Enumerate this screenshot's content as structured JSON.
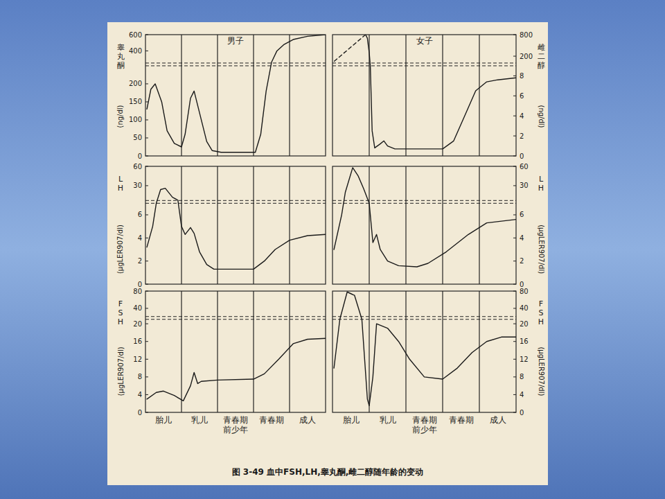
{
  "chart_data": [
    {
      "type": "line",
      "title": "男子",
      "ylabel": "睾丸酮",
      "yunit": "(ng/dl)",
      "xlim": [
        0,
        5
      ],
      "xticks": [
        1,
        2,
        3,
        4
      ],
      "grid": true,
      "tick_labels": "y",
      "ylim": [
        0,
        600
      ],
      "yticks": [
        0,
        50,
        100,
        150,
        200,
        400,
        600
      ],
      "axis_break": 250,
      "series": [
        {
          "color": "#1a1a1a",
          "line_style": "solid",
          "x": [
            0.04,
            0.15,
            0.27,
            0.45,
            0.6,
            0.8,
            1.0,
            1.1,
            1.25,
            1.35,
            1.5,
            1.7,
            1.85,
            2.1,
            3.05,
            3.2,
            3.35,
            3.5,
            3.65,
            3.85,
            4.1,
            4.5,
            5
          ],
          "values": [
            130,
            185,
            200,
            150,
            70,
            35,
            25,
            60,
            160,
            180,
            120,
            40,
            15,
            10,
            10,
            60,
            180,
            260,
            400,
            480,
            540,
            580,
            600
          ]
        }
      ]
    },
    {
      "type": "line",
      "title": "女子",
      "ylabel": "雌二醇",
      "yunit": "(ng/dl)",
      "xlim": [
        0,
        5
      ],
      "xticks": [
        1,
        2,
        3,
        4
      ],
      "grid": true,
      "tick_labels": "y",
      "y2lim": [
        0,
        800
      ],
      "y2ticks": [
        0,
        2,
        4,
        6,
        8,
        200,
        800
      ],
      "axis_break": 9,
      "series": [
        {
          "color": "#1a1a1a",
          "line_style": "dashed",
          "axis": "y2",
          "x": [
            0.05,
            0.9
          ],
          "values": [
            60,
            800
          ]
        },
        {
          "color": "#1a1a1a",
          "line_style": "solid",
          "axis": "y2",
          "x": [
            0.9,
            0.95,
            1.0,
            1.03,
            1.08,
            1.15,
            1.3,
            1.4,
            1.5,
            1.7,
            3.0,
            3.3,
            3.6,
            3.9,
            4.2,
            4.5,
            5
          ],
          "values": [
            800,
            700,
            300,
            9,
            2.5,
            0.8,
            1.2,
            1.5,
            1.0,
            0.7,
            0.7,
            1.5,
            4,
            6.5,
            7.4,
            7.6,
            7.8
          ]
        }
      ]
    },
    {
      "type": "line",
      "ylabel": "LH",
      "yunit": "(μgLER907/dl)",
      "xlim": [
        0,
        5
      ],
      "xticks": [
        1,
        2,
        3,
        4
      ],
      "grid": true,
      "tick_labels": "y",
      "ylim": [
        0,
        60
      ],
      "yticks": [
        0,
        2,
        4,
        6,
        30,
        60
      ],
      "axis_break": 7,
      "series": [
        {
          "color": "#1a1a1a",
          "line_style": "solid",
          "x": [
            0.04,
            0.2,
            0.3,
            0.42,
            0.55,
            0.75,
            0.9,
            1.0,
            1.1,
            1.25,
            1.35,
            1.5,
            1.7,
            1.9,
            3.0,
            3.3,
            3.6,
            4.0,
            4.5,
            5
          ],
          "values": [
            3.2,
            5,
            7,
            24,
            26,
            12,
            7.5,
            5,
            4.3,
            4.9,
            4.4,
            2.8,
            1.7,
            1.3,
            1.3,
            2,
            3,
            3.8,
            4.2,
            4.3
          ]
        }
      ]
    },
    {
      "type": "line",
      "ylabel": "LH",
      "yunit": "(μgLER907/dl)",
      "xlim": [
        0,
        5
      ],
      "xticks": [
        1,
        2,
        3,
        4
      ],
      "grid": true,
      "tick_labels": "y",
      "y2lim": [
        0,
        60
      ],
      "y2ticks": [
        0,
        2,
        4,
        6,
        30,
        60
      ],
      "axis_break": 7,
      "series": [
        {
          "color": "#1a1a1a",
          "line_style": "solid",
          "axis": "y2",
          "x": [
            0.04,
            0.25,
            0.35,
            0.55,
            0.7,
            0.85,
            1.0,
            1.1,
            1.2,
            1.3,
            1.5,
            1.8,
            2.3,
            2.6,
            3.1,
            3.7,
            4.2,
            5
          ],
          "values": [
            3,
            6,
            20,
            58,
            45,
            25,
            7,
            3.6,
            4.3,
            3,
            2,
            1.6,
            1.5,
            1.8,
            2.8,
            4.3,
            5.3,
            5.6
          ]
        }
      ]
    },
    {
      "type": "line",
      "ylabel": "FSH",
      "yunit": "(μgLER907/dl)",
      "categories": [
        "胎儿",
        "乳儿",
        "青春期前少年",
        "青春期",
        "成人"
      ],
      "xlim": [
        0,
        5
      ],
      "xticks": [
        1,
        2,
        3,
        4
      ],
      "grid": true,
      "tick_labels": "y",
      "ylim": [
        0,
        80
      ],
      "yticks": [
        0,
        4,
        8,
        12,
        16,
        20,
        40,
        80
      ],
      "axis_break": 21,
      "series": [
        {
          "color": "#1a1a1a",
          "line_style": "solid",
          "x": [
            0.04,
            0.3,
            0.5,
            0.8,
            1.05,
            1.25,
            1.35,
            1.45,
            1.55,
            2.0,
            3.0,
            3.3,
            3.7,
            4.1,
            4.5,
            5
          ],
          "values": [
            3,
            4.5,
            4.8,
            3.8,
            2.6,
            6,
            9,
            6.5,
            7,
            7.3,
            7.5,
            8.7,
            12,
            15.5,
            16.5,
            16.7
          ]
        }
      ]
    },
    {
      "type": "line",
      "ylabel": "FSH",
      "yunit": "(μgLER907/dl)",
      "categories": [
        "胎儿",
        "乳儿",
        "青春期前少年",
        "青春期",
        "成人"
      ],
      "xlim": [
        0,
        5
      ],
      "xticks": [
        1,
        2,
        3,
        4
      ],
      "grid": true,
      "tick_labels": "y",
      "y2lim": [
        0,
        80
      ],
      "y2ticks": [
        0,
        4,
        8,
        12,
        16,
        20,
        40,
        80
      ],
      "axis_break": 21,
      "series": [
        {
          "color": "#1a1a1a",
          "line_style": "solid",
          "axis": "y2",
          "x": [
            0.04,
            0.2,
            0.4,
            0.6,
            0.8,
            0.95,
            1.0,
            1.1,
            1.2,
            1.5,
            1.8,
            2.1,
            2.5,
            3.0,
            3.4,
            3.8,
            4.2,
            4.6,
            5
          ],
          "values": [
            10,
            21,
            78,
            70,
            21,
            3,
            1.5,
            8,
            20,
            19,
            16,
            12,
            8,
            7.5,
            10,
            13.5,
            16,
            17,
            17
          ]
        }
      ]
    }
  ],
  "caption": "图 3-49  血中FSH,LH,睾丸酮,雌二醇随年龄的变动"
}
